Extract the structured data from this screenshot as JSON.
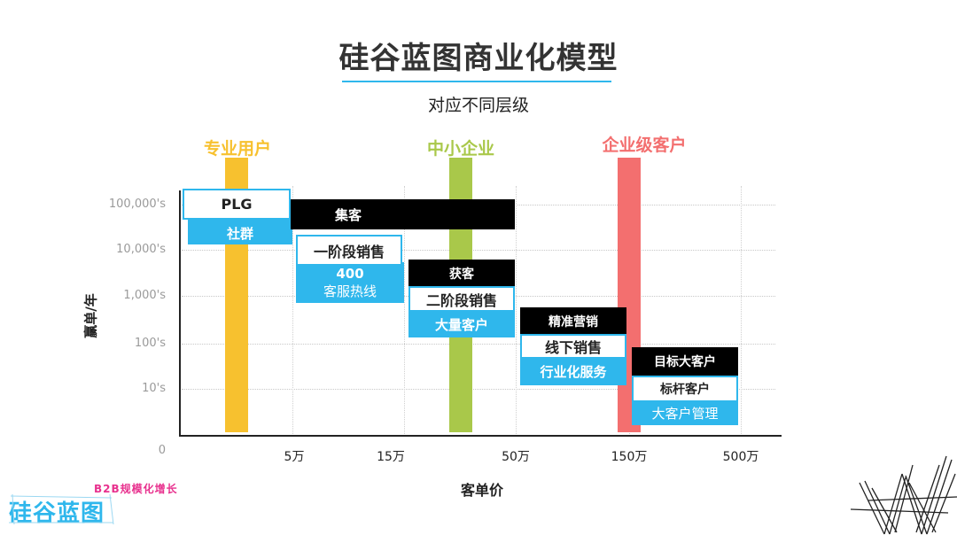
{
  "header": {
    "title": "硅谷蓝图商业化模型",
    "subtitle": "对应不同层级"
  },
  "segments": [
    {
      "label": "专业用户",
      "color": "#f7c12f"
    },
    {
      "label": "中小企业",
      "color": "#a9c84a"
    },
    {
      "label": "企业级客户",
      "color": "#f36f6f"
    }
  ],
  "y_axis": {
    "title": "赢单/年",
    "ticks": [
      "100,000's",
      "10,000's",
      "1,000's",
      "100's",
      "10's",
      "0"
    ]
  },
  "x_axis": {
    "title": "客单价",
    "ticks": [
      "5万",
      "15万",
      "50万",
      "150万",
      "500万"
    ]
  },
  "stages": {
    "plg": {
      "top": "PLG",
      "bottom": "社群"
    },
    "jike": {
      "label": "集客"
    },
    "stage1": {
      "top": "一阶段销售",
      "bottom_line1": "400",
      "bottom_line2": "客服热线"
    },
    "stage2": {
      "top": "获客",
      "middle": "二阶段销售",
      "bottom": "大量客户"
    },
    "stage3": {
      "top": "精准营销",
      "middle": "线下销售",
      "bottom": "行业化服务"
    },
    "stage4": {
      "top": "目标大客户",
      "middle": "标杆客户",
      "bottom": "大客户管理"
    }
  },
  "branding": {
    "tagline": "B2B规模化增长",
    "logo": "硅谷蓝图"
  }
}
